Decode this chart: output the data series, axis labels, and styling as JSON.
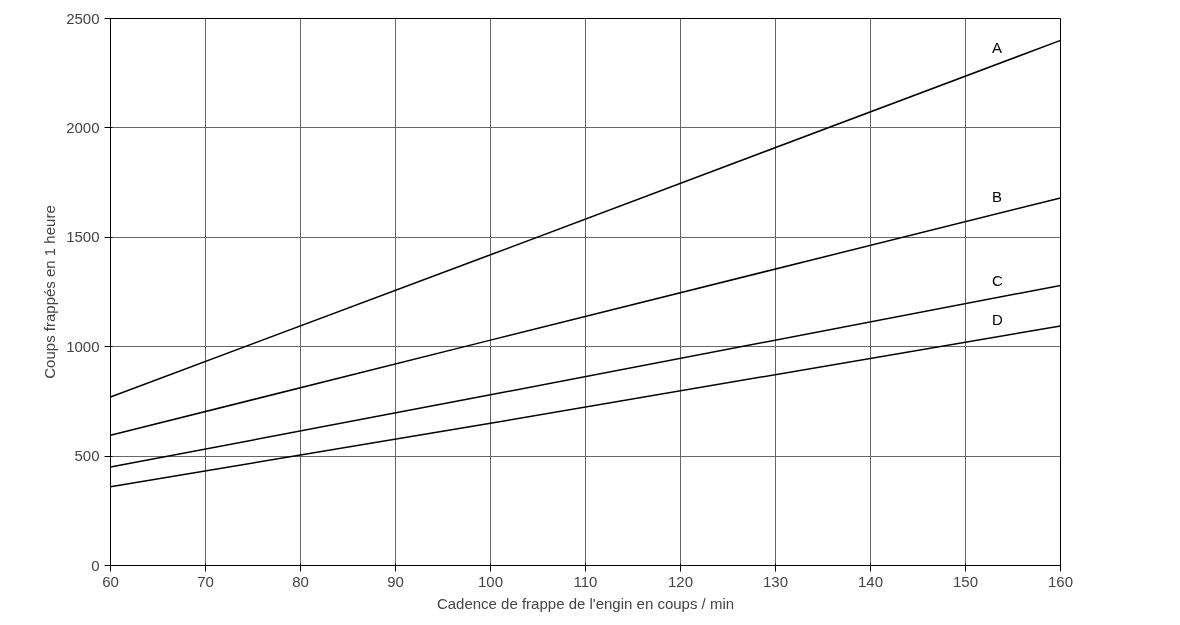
{
  "chart_data": {
    "type": "line",
    "xlabel": "Cadence de frappe de l'engin en coups / min",
    "ylabel": "Coups frappés en 1 heure",
    "x": [
      60,
      100,
      160
    ],
    "series": [
      {
        "name": "A",
        "color": "#000000",
        "values": [
          770,
          1420,
          2400
        ]
      },
      {
        "name": "B",
        "color": "#000000",
        "values": [
          595,
          1030,
          1680
        ]
      },
      {
        "name": "C",
        "color": "#000000",
        "values": [
          450,
          780,
          1280
        ]
      },
      {
        "name": "D",
        "color": "#000000",
        "values": [
          360,
          650,
          1095
        ]
      }
    ],
    "xlim": [
      60,
      160
    ],
    "ylim": [
      0,
      2500
    ],
    "xticks": [
      60,
      70,
      80,
      90,
      100,
      110,
      120,
      130,
      140,
      150,
      160
    ],
    "yticks": [
      0,
      500,
      1000,
      1500,
      2000,
      2500
    ],
    "grid": true,
    "marker": "none",
    "line_style": "solid"
  }
}
